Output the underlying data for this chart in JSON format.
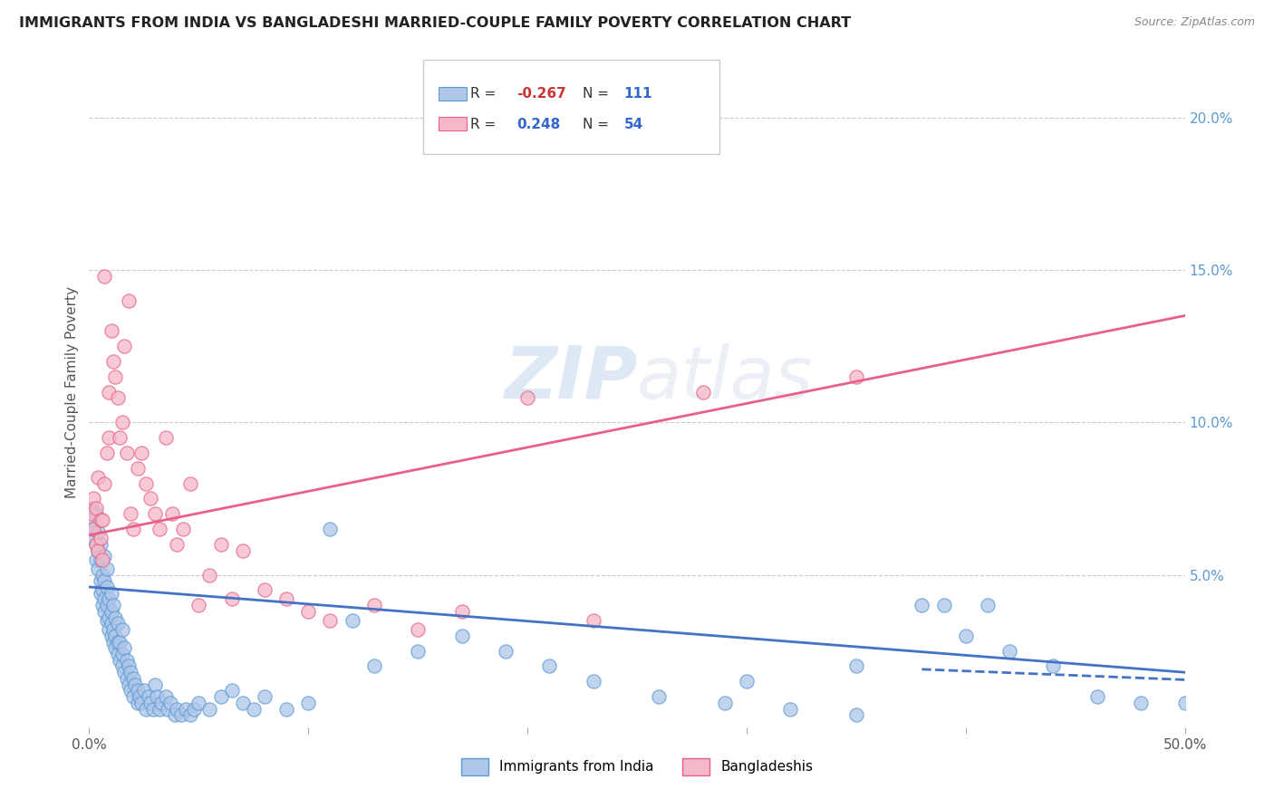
{
  "title": "IMMIGRANTS FROM INDIA VS BANGLADESHI MARRIED-COUPLE FAMILY POVERTY CORRELATION CHART",
  "source": "Source: ZipAtlas.com",
  "ylabel": "Married-Couple Family Poverty",
  "xlim": [
    0,
    0.5
  ],
  "ylim": [
    0,
    0.22
  ],
  "xticks": [
    0.0,
    0.5
  ],
  "xticklabels": [
    "0.0%",
    "50.0%"
  ],
  "yticks_right": [
    0.05,
    0.1,
    0.15,
    0.2
  ],
  "ytickslabels_right": [
    "5.0%",
    "10.0%",
    "15.0%",
    "20.0%"
  ],
  "watermark": "ZIPatlas",
  "legend_india_label": "Immigrants from India",
  "legend_bang_label": "Bangladeshis",
  "india_R": "-0.267",
  "india_N": "111",
  "bang_R": "0.248",
  "bang_N": "54",
  "india_color": "#aec6e8",
  "bang_color": "#f5b8c8",
  "india_edge_color": "#5b9bd5",
  "bang_edge_color": "#e8608a",
  "india_line_color": "#4472c4",
  "bang_line_color": "#e8608a",
  "india_trend_x": [
    0.0,
    0.5
  ],
  "india_trend_y": [
    0.046,
    0.018
  ],
  "bang_trend_x": [
    0.0,
    0.5
  ],
  "bang_trend_y": [
    0.063,
    0.135
  ],
  "india_scatter_x": [
    0.001,
    0.001,
    0.002,
    0.002,
    0.003,
    0.003,
    0.003,
    0.004,
    0.004,
    0.004,
    0.005,
    0.005,
    0.005,
    0.005,
    0.006,
    0.006,
    0.006,
    0.007,
    0.007,
    0.007,
    0.007,
    0.008,
    0.008,
    0.008,
    0.008,
    0.009,
    0.009,
    0.009,
    0.01,
    0.01,
    0.01,
    0.01,
    0.011,
    0.011,
    0.011,
    0.012,
    0.012,
    0.012,
    0.013,
    0.013,
    0.013,
    0.014,
    0.014,
    0.015,
    0.015,
    0.015,
    0.016,
    0.016,
    0.017,
    0.017,
    0.018,
    0.018,
    0.019,
    0.019,
    0.02,
    0.02,
    0.021,
    0.022,
    0.022,
    0.023,
    0.024,
    0.025,
    0.026,
    0.027,
    0.028,
    0.029,
    0.03,
    0.031,
    0.032,
    0.033,
    0.035,
    0.036,
    0.037,
    0.039,
    0.04,
    0.042,
    0.044,
    0.046,
    0.048,
    0.05,
    0.055,
    0.06,
    0.065,
    0.07,
    0.075,
    0.08,
    0.09,
    0.1,
    0.11,
    0.12,
    0.13,
    0.15,
    0.17,
    0.19,
    0.21,
    0.23,
    0.26,
    0.29,
    0.32,
    0.35,
    0.38,
    0.4,
    0.42,
    0.44,
    0.46,
    0.48,
    0.5,
    0.39,
    0.41,
    0.35,
    0.3
  ],
  "india_scatter_y": [
    0.072,
    0.065,
    0.068,
    0.062,
    0.06,
    0.055,
    0.07,
    0.058,
    0.052,
    0.064,
    0.048,
    0.055,
    0.044,
    0.06,
    0.045,
    0.05,
    0.04,
    0.042,
    0.038,
    0.048,
    0.056,
    0.035,
    0.04,
    0.046,
    0.052,
    0.032,
    0.036,
    0.042,
    0.03,
    0.034,
    0.038,
    0.044,
    0.028,
    0.032,
    0.04,
    0.026,
    0.03,
    0.036,
    0.024,
    0.028,
    0.034,
    0.022,
    0.028,
    0.02,
    0.024,
    0.032,
    0.018,
    0.026,
    0.016,
    0.022,
    0.014,
    0.02,
    0.012,
    0.018,
    0.01,
    0.016,
    0.014,
    0.008,
    0.012,
    0.01,
    0.008,
    0.012,
    0.006,
    0.01,
    0.008,
    0.006,
    0.014,
    0.01,
    0.006,
    0.008,
    0.01,
    0.006,
    0.008,
    0.004,
    0.006,
    0.004,
    0.006,
    0.004,
    0.006,
    0.008,
    0.006,
    0.01,
    0.012,
    0.008,
    0.006,
    0.01,
    0.006,
    0.008,
    0.065,
    0.035,
    0.02,
    0.025,
    0.03,
    0.025,
    0.02,
    0.015,
    0.01,
    0.008,
    0.006,
    0.004,
    0.04,
    0.03,
    0.025,
    0.02,
    0.01,
    0.008,
    0.008,
    0.04,
    0.04,
    0.02,
    0.015
  ],
  "bang_scatter_x": [
    0.001,
    0.002,
    0.002,
    0.003,
    0.003,
    0.004,
    0.004,
    0.005,
    0.005,
    0.006,
    0.006,
    0.007,
    0.007,
    0.008,
    0.009,
    0.009,
    0.01,
    0.011,
    0.012,
    0.013,
    0.014,
    0.015,
    0.016,
    0.017,
    0.018,
    0.019,
    0.02,
    0.022,
    0.024,
    0.026,
    0.028,
    0.03,
    0.032,
    0.035,
    0.038,
    0.04,
    0.043,
    0.046,
    0.05,
    0.055,
    0.06,
    0.065,
    0.07,
    0.08,
    0.09,
    0.1,
    0.11,
    0.13,
    0.15,
    0.17,
    0.2,
    0.23,
    0.28,
    0.35
  ],
  "bang_scatter_y": [
    0.07,
    0.065,
    0.075,
    0.06,
    0.072,
    0.058,
    0.082,
    0.062,
    0.068,
    0.055,
    0.068,
    0.148,
    0.08,
    0.09,
    0.11,
    0.095,
    0.13,
    0.12,
    0.115,
    0.108,
    0.095,
    0.1,
    0.125,
    0.09,
    0.14,
    0.07,
    0.065,
    0.085,
    0.09,
    0.08,
    0.075,
    0.07,
    0.065,
    0.095,
    0.07,
    0.06,
    0.065,
    0.08,
    0.04,
    0.05,
    0.06,
    0.042,
    0.058,
    0.045,
    0.042,
    0.038,
    0.035,
    0.04,
    0.032,
    0.038,
    0.108,
    0.035,
    0.11,
    0.115
  ]
}
